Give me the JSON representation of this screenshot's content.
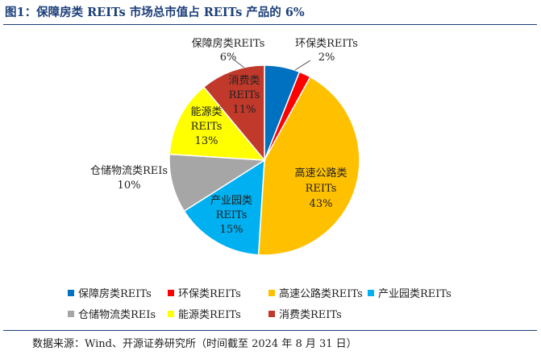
{
  "title": "图1：保障房类 REITs 市场总市值占 REITs 产品的 6%",
  "source": "数据来源：Wind、开源证券研究所（时间截至 2024 年 8 月 31 日）",
  "chart_data": {
    "type": "pie",
    "title": "",
    "slices": [
      {
        "name": "保障房类REITs",
        "value": 6,
        "label": "6%",
        "color": "#0070c0"
      },
      {
        "name": "环保类REITs",
        "value": 2,
        "label": "2%",
        "color": "#ff0000"
      },
      {
        "name": "高速公路类REITs",
        "value": 43,
        "label": "43%",
        "color": "#ffc000"
      },
      {
        "name": "产业园类REITs",
        "value": 15,
        "label": "15%",
        "color": "#00b0f0"
      },
      {
        "name": "仓储物流类REIs",
        "value": 10,
        "label": "10%",
        "color": "#a6a6a6"
      },
      {
        "name": "能源类REITs",
        "value": 13,
        "label": "13%",
        "color": "#ffff00"
      },
      {
        "name": "消费类REITs",
        "value": 11,
        "label": "11%",
        "color": "#c0392b"
      }
    ],
    "data_labels": [
      {
        "lines": [
          "保障房类REITs",
          "6%"
        ]
      },
      {
        "lines": [
          "环保类REITs",
          "2%"
        ]
      },
      {
        "lines": [
          "高速公路类",
          "REITs",
          "43%"
        ]
      },
      {
        "lines": [
          "产业园类",
          "REITs",
          "15%"
        ]
      },
      {
        "lines": [
          "仓储物流类REIs",
          "10%"
        ]
      },
      {
        "lines": [
          "能源类",
          "REITs",
          "13%"
        ]
      },
      {
        "lines": [
          "消费类",
          "REITs",
          "11%"
        ]
      }
    ],
    "legend": {
      "placement": "bottom",
      "items": [
        "保障房类REITs",
        "环保类REITs",
        "高速公路类REITs",
        "产业园类REITs",
        "仓储物流类REIs",
        "能源类REITs",
        "消费类REITs"
      ]
    }
  }
}
